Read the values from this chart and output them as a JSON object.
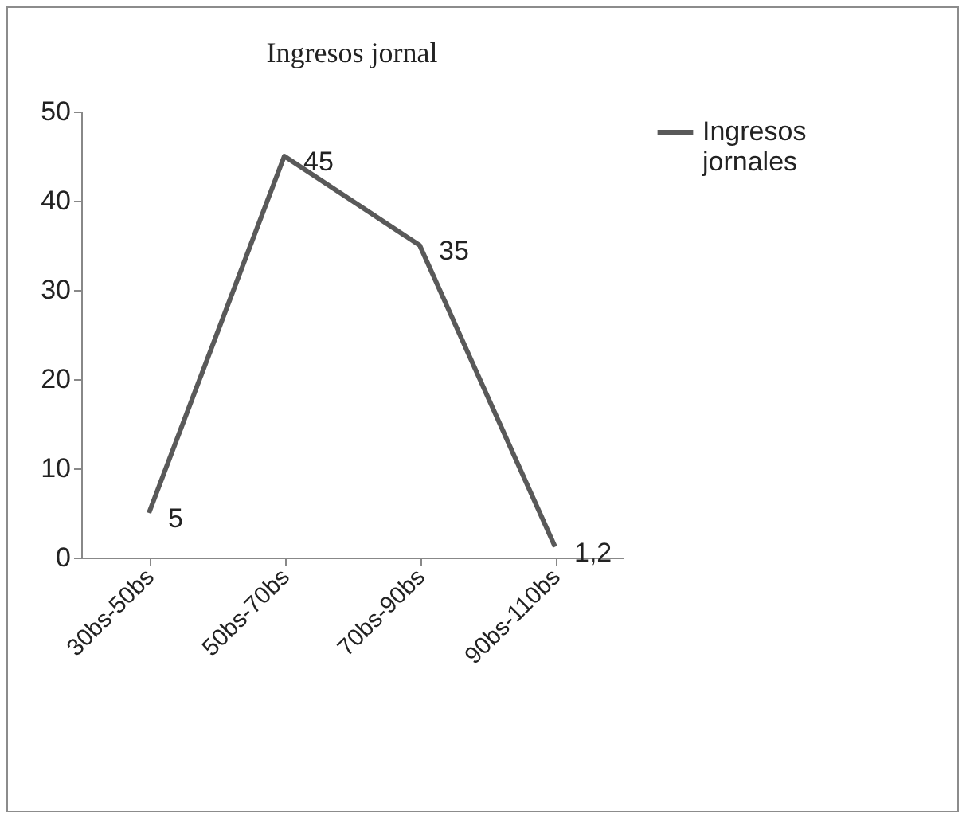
{
  "chart_data": {
    "type": "line",
    "title": "Ingresos  jornal",
    "categories": [
      "30bs-50bs",
      "50bs-70bs",
      "70bs-90bs",
      "90bs-110bs"
    ],
    "series": [
      {
        "name": "Ingresos jornales",
        "color": "#595959",
        "values": [
          5,
          45,
          35,
          1.2
        ],
        "value_labels": [
          "5",
          "45",
          "35",
          "1,2"
        ]
      }
    ],
    "ylim": [
      0,
      50
    ],
    "yticks": [
      0,
      10,
      20,
      30,
      40,
      50
    ],
    "grid": false,
    "legend": "right",
    "marker": "none",
    "line_style": "solid"
  }
}
